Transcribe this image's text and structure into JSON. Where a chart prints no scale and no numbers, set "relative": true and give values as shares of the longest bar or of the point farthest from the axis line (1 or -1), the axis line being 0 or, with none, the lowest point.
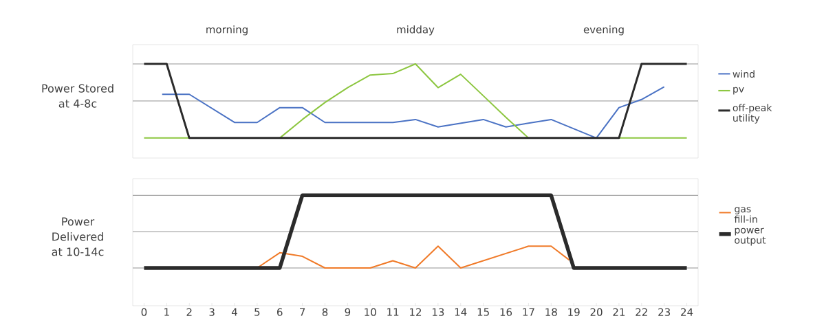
{
  "chart_data": [
    {
      "type": "line",
      "relative": true,
      "ylabel": "Power Stored at 4-8c",
      "xlim": [
        -0.5,
        24.5
      ],
      "xticks": [
        0,
        1,
        2,
        3,
        4,
        5,
        6,
        7,
        8,
        9,
        10,
        11,
        12,
        13,
        14,
        15,
        16,
        17,
        18,
        19,
        20,
        21,
        22,
        23,
        24
      ],
      "tick_labels": false,
      "legend": "right",
      "line_style": "solid",
      "ref_lines": [
        {
          "axis": "y",
          "value": 0.5,
          "color": "#777777"
        },
        {
          "axis": "y",
          "value": 1,
          "color": "#777777"
        }
      ],
      "annotations": [
        "morning",
        "midday",
        "evening"
      ],
      "series": [
        {
          "name": "wind",
          "color": "#4a72c4",
          "x": [
            0.8,
            2,
            4,
            5,
            6,
            7,
            8,
            9,
            10,
            11,
            12,
            13,
            14,
            15,
            16,
            17,
            18,
            20,
            21,
            22,
            23
          ],
          "values": [
            0.59,
            0.59,
            0.21,
            0.21,
            0.41,
            0.41,
            0.21,
            0.21,
            0.21,
            0.21,
            0.25,
            0.15,
            0.2,
            0.25,
            0.15,
            0.2,
            0.25,
            0,
            0.41,
            0.52,
            0.69
          ]
        },
        {
          "name": "pv",
          "color": "#8cc63f",
          "x": [
            0,
            1,
            2,
            3,
            4,
            5,
            6,
            7,
            8,
            9,
            10,
            11,
            12,
            13,
            14,
            15,
            16,
            17,
            18,
            19,
            20,
            21,
            22,
            23,
            24
          ],
          "values": [
            0,
            0,
            0,
            null,
            null,
            null,
            0,
            0.25,
            0.48,
            0.68,
            0.85,
            0.87,
            1,
            0.68,
            0.86,
            0.57,
            0.28,
            0,
            null,
            null,
            null,
            0,
            0,
            0,
            0
          ]
        },
        {
          "name": "off-peak utility",
          "color": "#2b2b2b",
          "x": [
            0,
            1,
            2,
            21,
            22,
            24
          ],
          "values": [
            1,
            1,
            0,
            0,
            1,
            1
          ]
        }
      ]
    },
    {
      "type": "line",
      "relative": true,
      "ylabel": "Power Delivered at 10-14c",
      "xlim": [
        -0.5,
        24.5
      ],
      "xticks": [
        0,
        1,
        2,
        3,
        4,
        5,
        6,
        7,
        8,
        9,
        10,
        11,
        12,
        13,
        14,
        15,
        16,
        17,
        18,
        19,
        20,
        21,
        22,
        23,
        24
      ],
      "legend": "right",
      "line_style": "solid",
      "ref_lines": [
        {
          "axis": "y",
          "value": 0,
          "color": "#777777"
        },
        {
          "axis": "y",
          "value": 0.5,
          "color": "#777777"
        },
        {
          "axis": "y",
          "value": 1,
          "color": "#777777"
        }
      ],
      "series": [
        {
          "name": "gas fill-in",
          "color": "#f07a28",
          "x": [
            5,
            6,
            7,
            8,
            9,
            10,
            11,
            12,
            13,
            14,
            15,
            16,
            17,
            18,
            18.8
          ],
          "values": [
            0,
            0.21,
            0.16,
            0,
            0,
            0,
            0.1,
            0,
            0.3,
            0,
            0.1,
            0.2,
            0.3,
            0.3,
            0.11
          ]
        },
        {
          "name": "power output",
          "color": "#2b2b2b",
          "x": [
            0,
            6,
            7,
            18,
            19,
            24
          ],
          "values": [
            0,
            0,
            1,
            1,
            0,
            0
          ]
        }
      ]
    }
  ]
}
